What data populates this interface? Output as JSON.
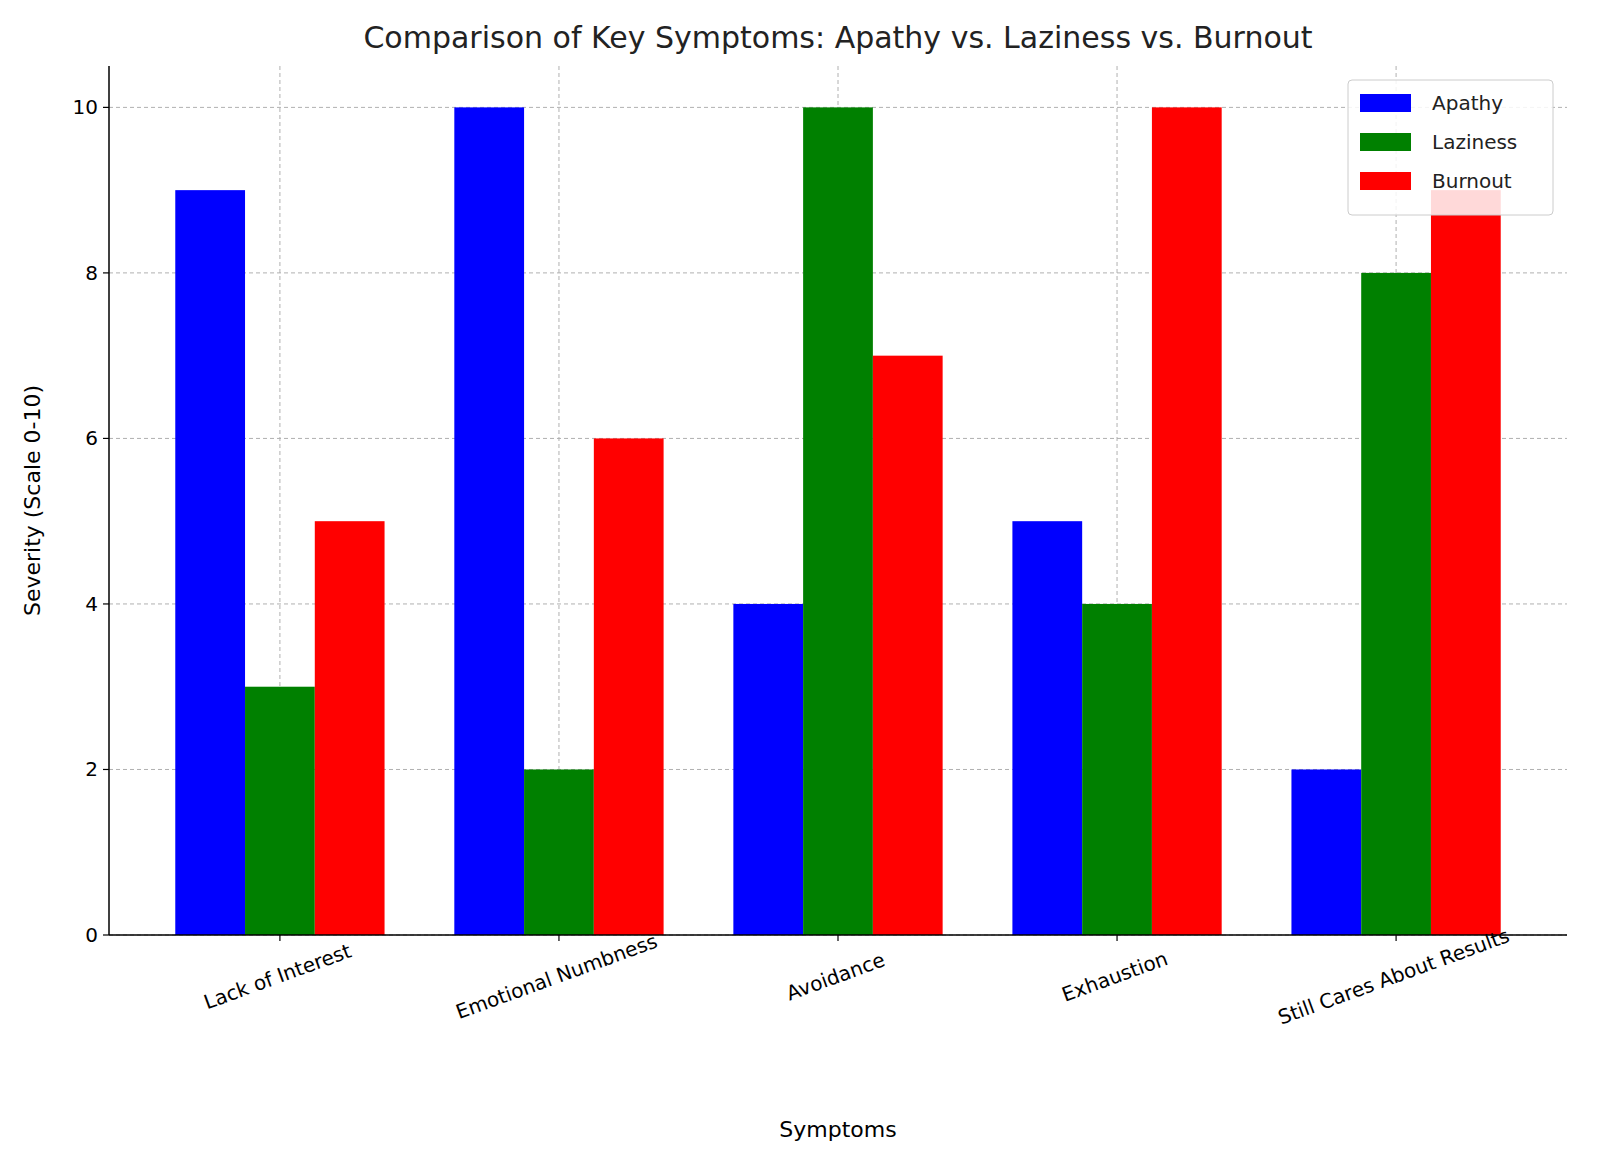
{
  "chart_data": {
    "type": "bar",
    "title": "Comparison of Key Symptoms: Apathy vs. Laziness vs. Burnout",
    "x_label": "Symptoms",
    "y_label": "Severity (Scale 0-10)",
    "categories": [
      "Lack of Interest",
      "Emotional Numbness",
      "Avoidance",
      "Exhaustion",
      "Still Cares About Results"
    ],
    "series": [
      {
        "name": "Apathy",
        "color": "#0000ff",
        "values": [
          9,
          10,
          4,
          5,
          2
        ]
      },
      {
        "name": "Laziness",
        "color": "#008000",
        "values": [
          3,
          2,
          10,
          4,
          8
        ]
      },
      {
        "name": "Burnout",
        "color": "#ff0000",
        "values": [
          5,
          6,
          7,
          10,
          9
        ]
      }
    ],
    "ylim": [
      0,
      10.5
    ],
    "yticks": [
      0,
      2,
      4,
      6,
      8,
      10
    ],
    "grid": true,
    "legend": "upper right"
  }
}
